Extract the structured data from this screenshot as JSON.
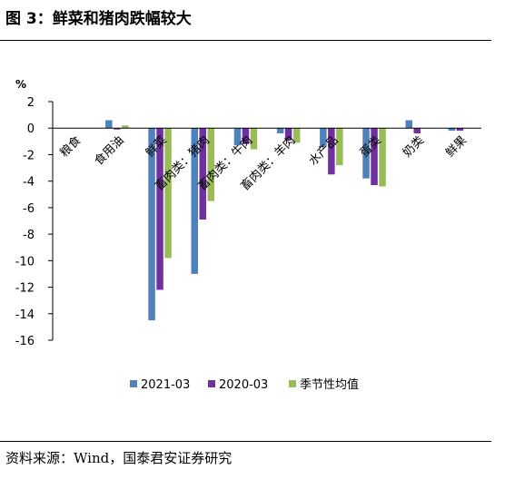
{
  "page": {
    "figure_title": "图 3：鲜菜和猪肉跌幅较大",
    "source_text": "资料来源：Wind，国泰君安证券研究"
  },
  "chart_data": {
    "type": "bar",
    "ylabel": "%",
    "ylim": [
      -16,
      2
    ],
    "yticks": [
      2,
      0,
      -2,
      -4,
      -6,
      -8,
      -10,
      -12,
      -14,
      -16
    ],
    "grid": false,
    "legend_position": "bottom",
    "categories": [
      "粮食",
      "食用油",
      "鲜菜",
      "畜肉类：猪肉",
      "畜肉类：牛肉",
      "畜肉类：羊肉",
      "水产品",
      "蛋类",
      "奶类",
      "鲜果"
    ],
    "series": [
      {
        "name": "2021-03",
        "color": "#4f81bd",
        "values": [
          0.0,
          0.6,
          -14.5,
          -11.0,
          -1.3,
          -0.4,
          -1.4,
          -3.8,
          0.6,
          -0.2
        ]
      },
      {
        "name": "2020-03",
        "color": "#7030a0",
        "values": [
          0.0,
          -0.1,
          -12.2,
          -6.9,
          -1.2,
          -0.9,
          -3.5,
          -4.3,
          -0.4,
          -0.2
        ]
      },
      {
        "name": "季节性均值",
        "color": "#9bbb59",
        "values": [
          0.0,
          0.2,
          -9.8,
          -5.5,
          -1.6,
          -1.1,
          -2.8,
          -4.4,
          0.0,
          0.0
        ]
      }
    ]
  }
}
